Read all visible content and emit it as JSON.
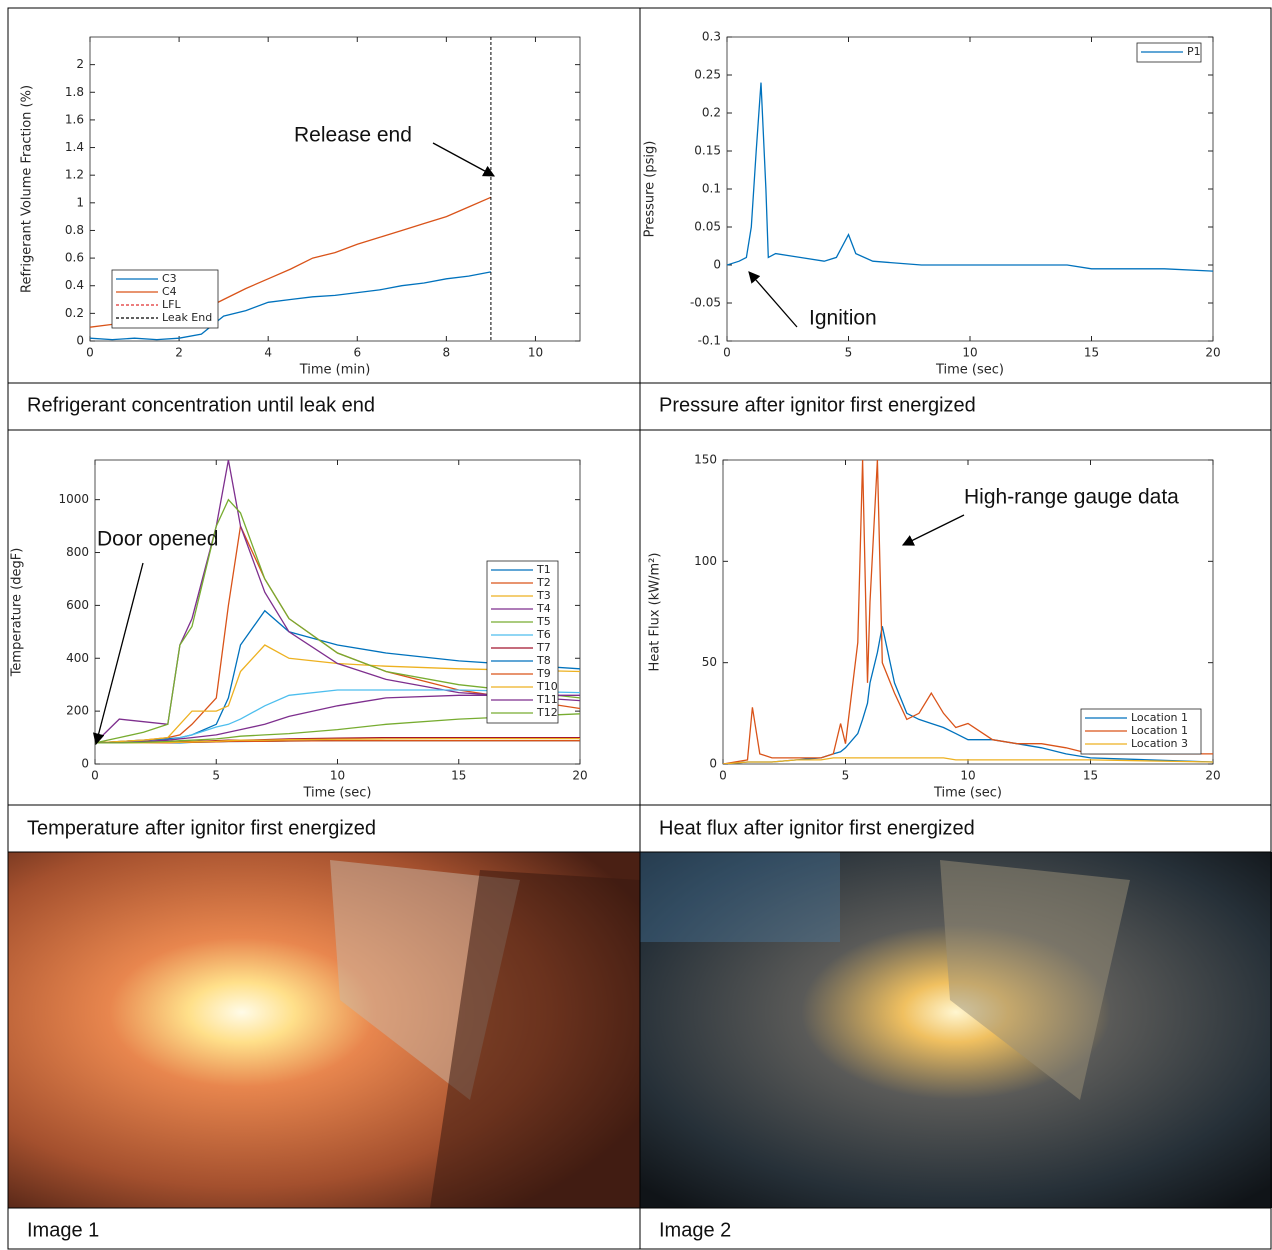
{
  "chart_data": [
    {
      "type": "line",
      "title": "Refrigerant concentration until leak end",
      "xlabel": "Time (min)",
      "ylabel": "Refrigerant Volume Fraction (%)",
      "x": [
        0,
        0.5,
        1,
        1.5,
        2,
        2.5,
        3,
        3.5,
        4,
        4.5,
        5,
        5.5,
        6,
        6.5,
        7,
        7.5,
        8,
        8.5,
        9
      ],
      "series": [
        {
          "name": "C3",
          "color": "#0072bd",
          "values": [
            0.02,
            0.01,
            0.02,
            0.01,
            0.02,
            0.05,
            0.18,
            0.22,
            0.28,
            0.3,
            0.32,
            0.33,
            0.35,
            0.37,
            0.4,
            0.42,
            0.45,
            0.47,
            0.5
          ]
        },
        {
          "name": "C4",
          "color": "#d95319",
          "values": [
            0.1,
            0.12,
            0.13,
            0.14,
            0.15,
            0.22,
            0.3,
            0.38,
            0.45,
            0.52,
            0.6,
            0.64,
            0.7,
            0.75,
            0.8,
            0.85,
            0.9,
            0.97,
            1.04
          ]
        }
      ],
      "reference_lines": [
        {
          "name": "LFL",
          "color": "#e03030"
        },
        {
          "name": "Leak End",
          "color": "#000000",
          "x": 9
        }
      ],
      "annotations": [
        "Release end"
      ],
      "xlim": [
        0,
        11
      ],
      "xticks": [
        0,
        2,
        4,
        6,
        8,
        10
      ],
      "ylim": [
        0,
        2.2
      ],
      "yticks": [
        0,
        0.2,
        0.4,
        0.6,
        0.8,
        1,
        1.2,
        1.4,
        1.6,
        1.8,
        2
      ],
      "legend": "lower left"
    },
    {
      "type": "line",
      "title": "Pressure after ignitor first energized",
      "xlabel": "Time (sec)",
      "ylabel": "Pressure (psig)",
      "x": [
        0,
        0.5,
        0.8,
        1,
        1.2,
        1.4,
        1.6,
        1.7,
        2,
        3,
        4,
        4.5,
        5,
        5.3,
        6,
        8,
        10,
        12,
        14,
        15,
        16,
        18,
        20
      ],
      "series": [
        {
          "name": "P1",
          "color": "#0072bd",
          "values": [
            0,
            0.005,
            0.01,
            0.05,
            0.15,
            0.24,
            0.1,
            0.01,
            0.015,
            0.01,
            0.005,
            0.01,
            0.04,
            0.015,
            0.005,
            0,
            0,
            0,
            0,
            -0.005,
            -0.005,
            -0.005,
            -0.008
          ]
        }
      ],
      "annotations": [
        "Ignition"
      ],
      "xlim": [
        0,
        20
      ],
      "xticks": [
        0,
        5,
        10,
        15,
        20
      ],
      "ylim": [
        -0.1,
        0.3
      ],
      "yticks": [
        -0.1,
        -0.05,
        0,
        0.05,
        0.1,
        0.15,
        0.2,
        0.25,
        0.3
      ],
      "legend": "upper right"
    },
    {
      "type": "line",
      "title": "Temperature after ignitor first energized",
      "xlabel": "Time (sec)",
      "ylabel": "Temperature (degF)",
      "x": [
        0,
        1,
        2,
        3,
        3.5,
        4,
        5,
        5.5,
        6,
        7,
        8,
        10,
        12,
        15,
        20
      ],
      "series": [
        {
          "name": "T1",
          "color": "#0072bd",
          "values": [
            80,
            85,
            90,
            95,
            100,
            110,
            150,
            250,
            450,
            580,
            500,
            450,
            420,
            390,
            360
          ]
        },
        {
          "name": "T2",
          "color": "#d95319",
          "values": [
            80,
            85,
            90,
            100,
            110,
            150,
            250,
            600,
            900,
            700,
            550,
            420,
            350,
            280,
            210
          ]
        },
        {
          "name": "T3",
          "color": "#edb120",
          "values": [
            80,
            85,
            90,
            100,
            150,
            200,
            200,
            220,
            350,
            450,
            400,
            380,
            370,
            360,
            350
          ]
        },
        {
          "name": "T4",
          "color": "#7e2f8e",
          "values": [
            80,
            170,
            160,
            150,
            450,
            550,
            900,
            1150,
            900,
            650,
            500,
            380,
            320,
            270,
            240
          ]
        },
        {
          "name": "T5",
          "color": "#77ac30",
          "values": [
            80,
            100,
            120,
            150,
            450,
            520,
            900,
            1000,
            950,
            700,
            550,
            420,
            350,
            300,
            250
          ]
        },
        {
          "name": "T6",
          "color": "#4dbeee",
          "values": [
            80,
            80,
            85,
            90,
            100,
            110,
            140,
            150,
            170,
            220,
            260,
            280,
            280,
            280,
            270
          ]
        },
        {
          "name": "T7",
          "color": "#a2142f",
          "values": [
            80,
            80,
            80,
            82,
            85,
            85,
            88,
            90,
            90,
            92,
            95,
            98,
            100,
            100,
            100
          ]
        },
        {
          "name": "T8",
          "color": "#0072bd",
          "values": [
            80,
            80,
            80,
            80,
            80,
            82,
            84,
            85,
            85,
            86,
            87,
            88,
            88,
            88,
            88
          ]
        },
        {
          "name": "T9",
          "color": "#d95319",
          "values": [
            80,
            80,
            80,
            80,
            82,
            82,
            84,
            85,
            86,
            86,
            87,
            88,
            88,
            88,
            88
          ]
        },
        {
          "name": "T10",
          "color": "#edb120",
          "values": [
            80,
            80,
            80,
            82,
            82,
            84,
            86,
            88,
            90,
            90,
            92,
            94,
            95,
            96,
            96
          ]
        },
        {
          "name": "T11",
          "color": "#7e2f8e",
          "values": [
            80,
            80,
            85,
            90,
            95,
            100,
            110,
            120,
            130,
            150,
            180,
            220,
            250,
            260,
            260
          ]
        },
        {
          "name": "T12",
          "color": "#77ac30",
          "values": [
            80,
            80,
            82,
            85,
            88,
            90,
            95,
            100,
            105,
            110,
            115,
            130,
            150,
            170,
            190
          ]
        }
      ],
      "annotations": [
        "Door opened"
      ],
      "xlim": [
        0,
        20
      ],
      "xticks": [
        0,
        5,
        10,
        15,
        20
      ],
      "ylim": [
        0,
        1150
      ],
      "yticks": [
        0,
        200,
        400,
        600,
        800,
        1000
      ],
      "legend": "right"
    },
    {
      "type": "line",
      "title": "Heat flux after ignitor first energized",
      "xlabel": "Time (sec)",
      "ylabel": "Heat Flux (kW/m²)",
      "x": [
        0,
        1,
        1.2,
        1.5,
        2,
        3,
        4,
        4.5,
        4.8,
        5,
        5.5,
        5.7,
        5.9,
        6,
        6.3,
        6.5,
        7,
        7.5,
        8,
        8.5,
        9,
        9.5,
        10,
        11,
        12,
        13,
        14,
        15,
        20
      ],
      "series": [
        {
          "name": "Location 1",
          "color": "#0072bd",
          "values": [
            0,
            1,
            1,
            1,
            1,
            2,
            3,
            5,
            6,
            8,
            15,
            22,
            30,
            40,
            55,
            68,
            40,
            25,
            22,
            20,
            18,
            15,
            12,
            12,
            10,
            8,
            5,
            3,
            1
          ]
        },
        {
          "name": "Location 1",
          "color": "#d95319",
          "values": [
            0,
            2,
            28,
            5,
            3,
            3,
            3,
            5,
            20,
            10,
            60,
            150,
            40,
            80,
            150,
            50,
            35,
            22,
            25,
            35,
            25,
            18,
            20,
            12,
            10,
            10,
            8,
            5,
            5
          ]
        },
        {
          "name": "Location 3",
          "color": "#edb120",
          "values": [
            0,
            1,
            1,
            1,
            1,
            2,
            2,
            3,
            3,
            3,
            3,
            3,
            3,
            3,
            3,
            3,
            3,
            3,
            3,
            3,
            3,
            2,
            2,
            2,
            2,
            2,
            2,
            2,
            1
          ]
        }
      ],
      "annotations": [
        "High-range gauge data"
      ],
      "xlim": [
        0,
        20
      ],
      "xticks": [
        0,
        5,
        10,
        15,
        20
      ],
      "ylim": [
        0,
        150
      ],
      "yticks": [
        0,
        50,
        100,
        150
      ],
      "legend": "lower right"
    }
  ],
  "images": [
    {
      "caption": "Image 1"
    },
    {
      "caption": "Image 2"
    }
  ]
}
